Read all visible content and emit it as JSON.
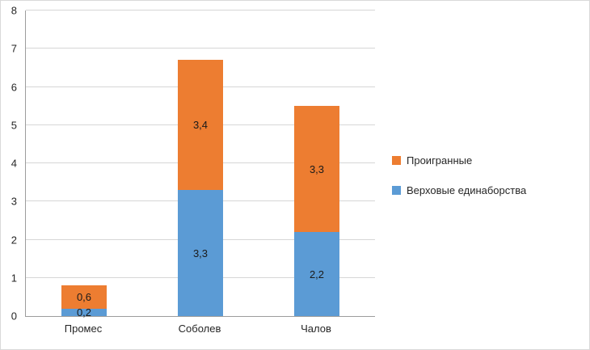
{
  "chart_data": {
    "type": "bar",
    "stacked": true,
    "title": "",
    "xlabel": "",
    "ylabel": "",
    "categories": [
      "Промес",
      "Соболев",
      "Чалов"
    ],
    "series": [
      {
        "name": "Верховые единаборства",
        "color": "#5B9BD5",
        "values": [
          0.2,
          3.3,
          2.2
        ],
        "labels": [
          "0,2",
          "3,3",
          "2,2"
        ]
      },
      {
        "name": "Проигранные",
        "color": "#ED7D31",
        "values": [
          0.6,
          3.4,
          3.3
        ],
        "labels": [
          "0,6",
          "3,4",
          "3,3"
        ]
      }
    ],
    "ylim": [
      0,
      8
    ],
    "ytick_step": 1,
    "ytick_labels": [
      "0",
      "1",
      "2",
      "3",
      "4",
      "5",
      "6",
      "7",
      "8"
    ],
    "grid": true,
    "legend_position": "right"
  }
}
